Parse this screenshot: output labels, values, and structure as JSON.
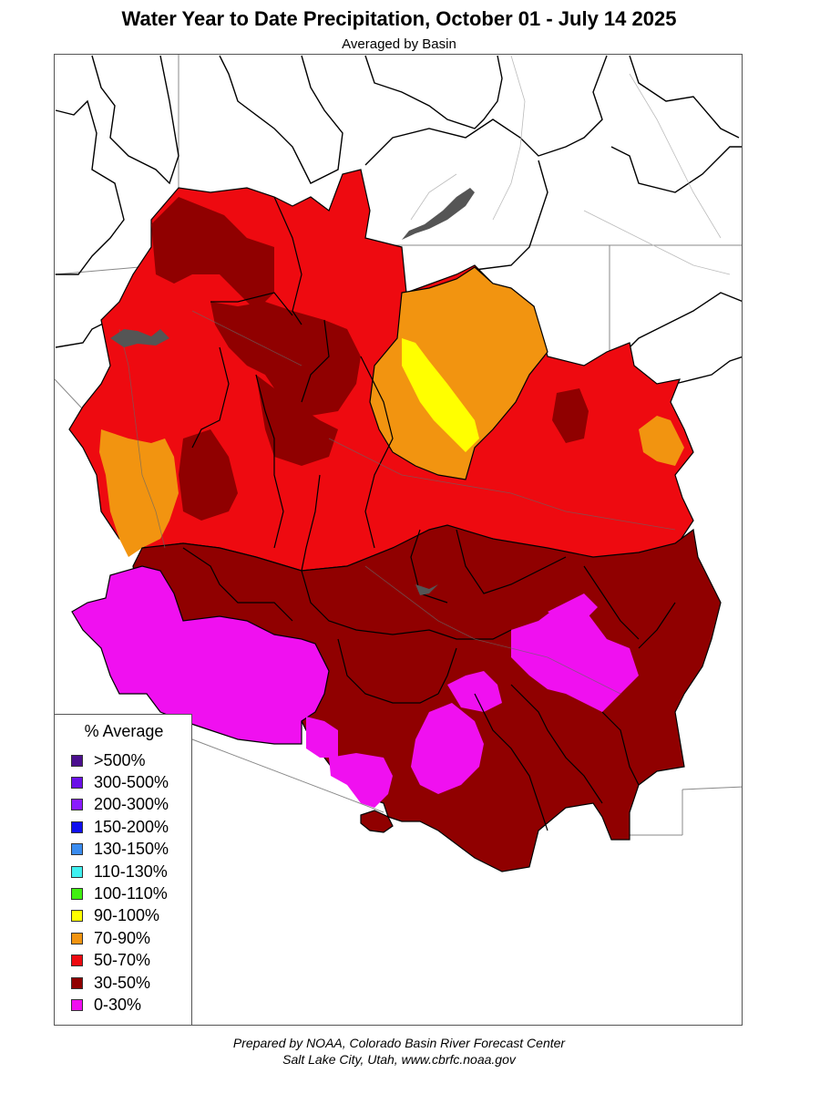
{
  "title": "Water Year to Date Precipitation, October 01  - July 14 2025",
  "subtitle": "Averaged by Basin",
  "legend": {
    "title": "% Average",
    "items": [
      {
        "label": ">500%",
        "color": "#4b0f8f"
      },
      {
        "label": "300-500%",
        "color": "#6a10e8"
      },
      {
        "label": "200-300%",
        "color": "#8a1cff"
      },
      {
        "label": "150-200%",
        "color": "#1010f0"
      },
      {
        "label": "130-150%",
        "color": "#3a8cf0"
      },
      {
        "label": "110-130%",
        "color": "#40f0f0"
      },
      {
        "label": "100-110%",
        "color": "#40f010"
      },
      {
        "label": "90-100%",
        "color": "#ffff00"
      },
      {
        "label": "70-90%",
        "color": "#f29410"
      },
      {
        "label": "50-70%",
        "color": "#ee0a10"
      },
      {
        "label": "30-50%",
        "color": "#900000"
      },
      {
        "label": "0-30%",
        "color": "#f010f0"
      }
    ]
  },
  "credit": {
    "line1": "Prepared by NOAA, Colorado Basin River Forecast Center",
    "line2": "Salt Lake City, Utah, www.cbrfc.noaa.gov"
  }
}
